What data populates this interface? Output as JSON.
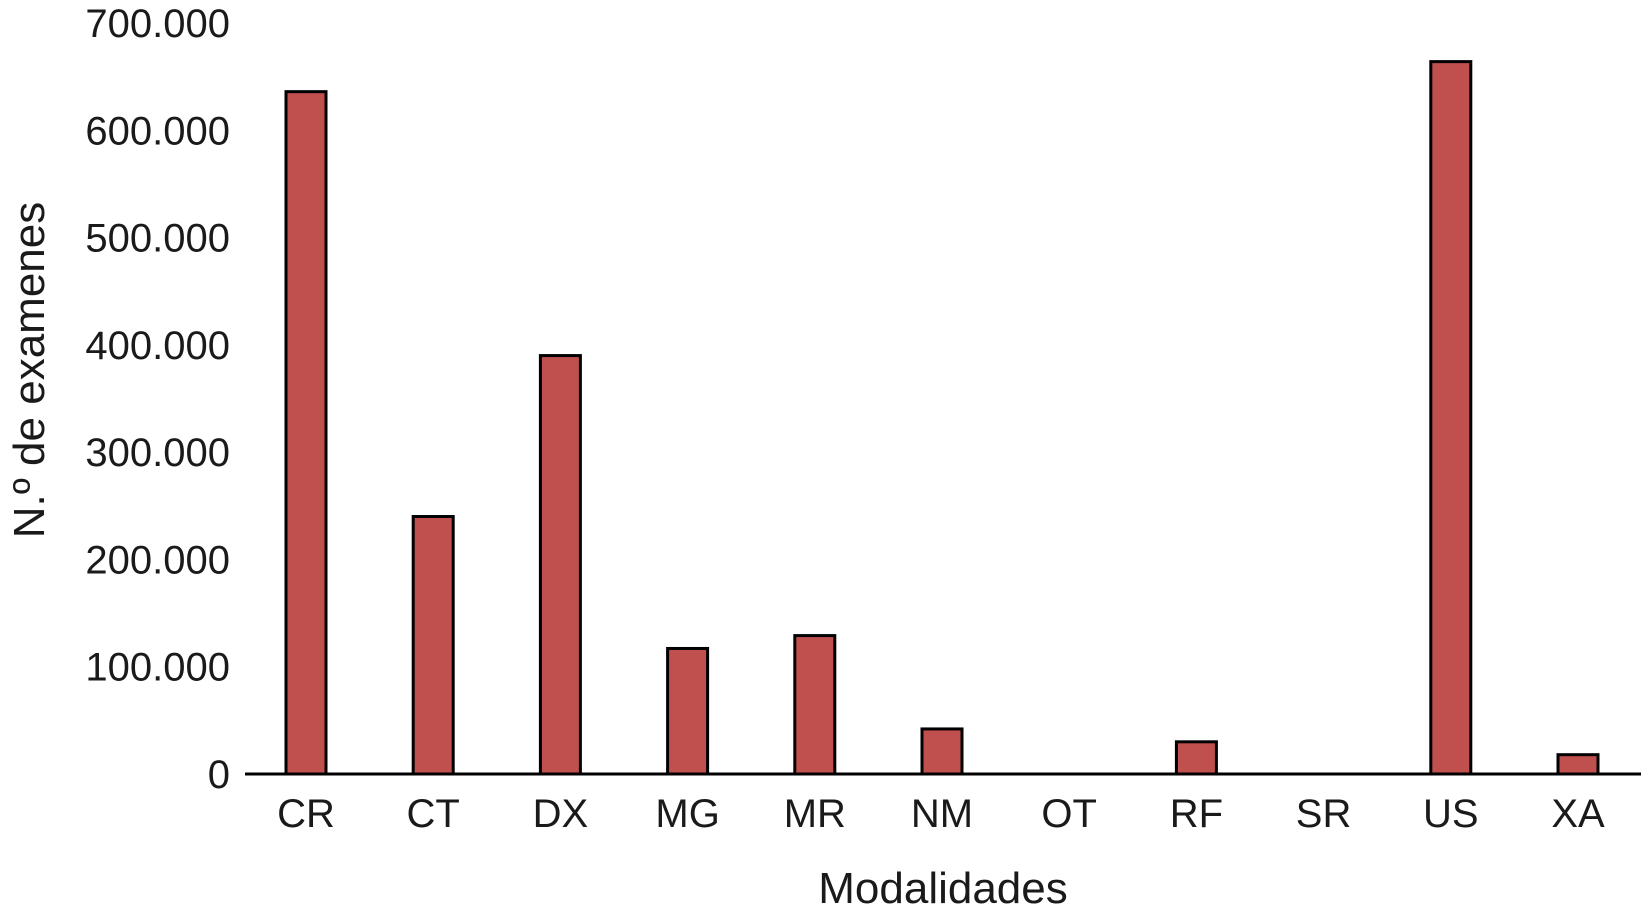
{
  "chart_data": {
    "type": "bar",
    "title": "",
    "xlabel": "Modalidades",
    "ylabel": "N.º de examenes",
    "categories": [
      "CR",
      "CT",
      "DX",
      "MG",
      "MR",
      "NM",
      "OT",
      "RF",
      "SR",
      "US",
      "XA"
    ],
    "values": [
      636000,
      240000,
      390000,
      117000,
      129000,
      42000,
      0,
      30000,
      0,
      664000,
      18000
    ],
    "ylim": [
      0,
      700000
    ],
    "yticks": [
      0,
      100000,
      200000,
      300000,
      400000,
      500000,
      600000,
      700000
    ],
    "ytick_labels": [
      "0",
      "100.000",
      "200.000",
      "300.000",
      "400.000",
      "500.000",
      "600.000",
      "700.000"
    ],
    "grid": false,
    "legend": "none",
    "bar_color": "#c0504d",
    "bar_edge_color": "#000000"
  }
}
